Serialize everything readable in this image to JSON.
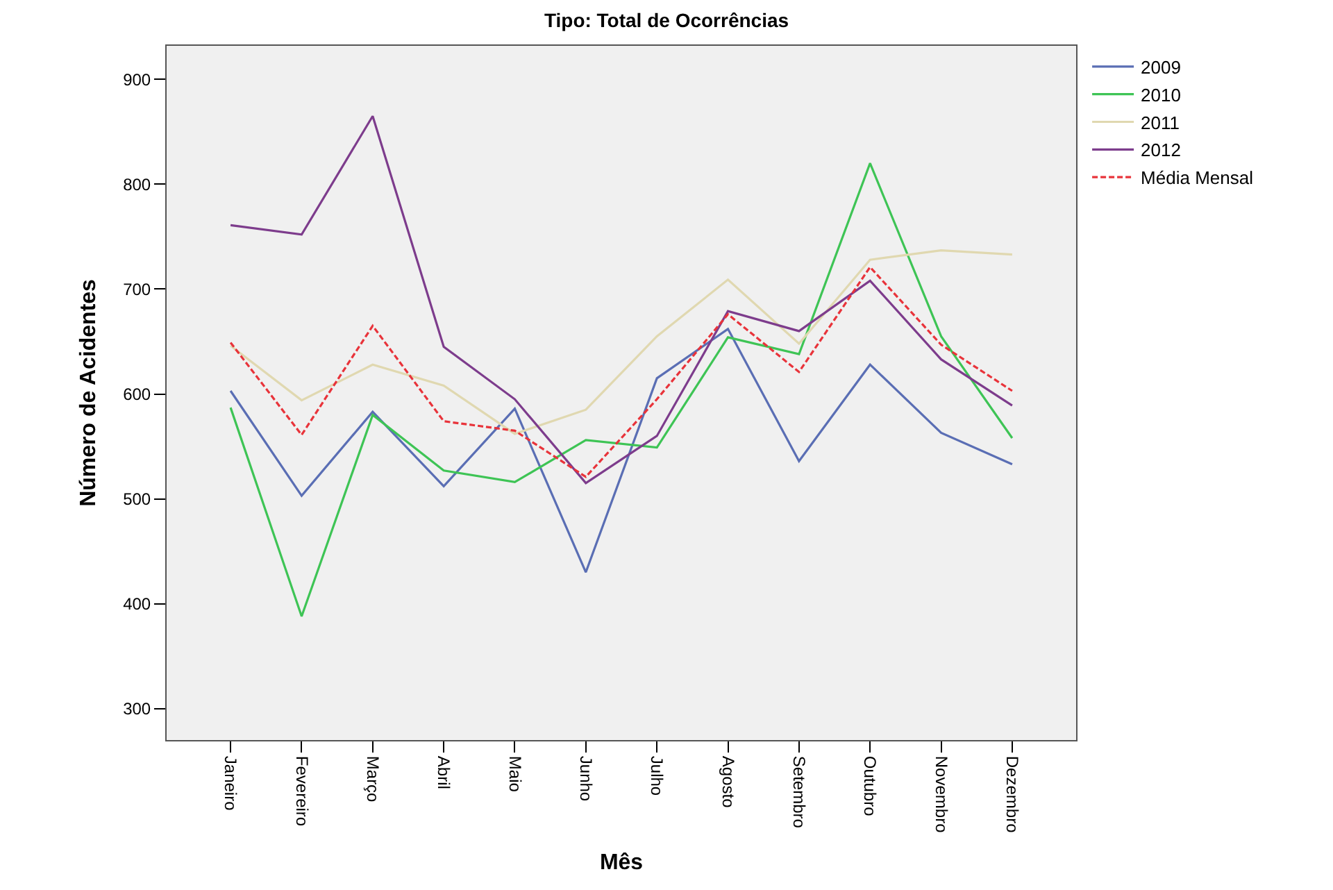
{
  "chart_data": {
    "type": "line",
    "title": "Tipo: Total de Ocorrências",
    "xlabel": "Mês",
    "ylabel": "Número de Acidentes",
    "categories": [
      "Janeiro",
      "Fevereiro",
      "Março",
      "Abril",
      "Maio",
      "Junho",
      "Julho",
      "Agosto",
      "Setembro",
      "Outubro",
      "Novembro",
      "Dezembro"
    ],
    "series": [
      {
        "name": "2009",
        "color": "#5a6eb4",
        "values": [
          603,
          503,
          583,
          512,
          586,
          430,
          615,
          662,
          536,
          628,
          563,
          533
        ]
      },
      {
        "name": "2010",
        "color": "#3ec455",
        "values": [
          587,
          388,
          580,
          527,
          516,
          556,
          549,
          654,
          638,
          820,
          655,
          558
        ]
      },
      {
        "name": "2011",
        "color": "#e0d8b0",
        "values": [
          646,
          594,
          628,
          608,
          562,
          585,
          655,
          709,
          648,
          728,
          737,
          733
        ]
      },
      {
        "name": "2012",
        "color": "#7d3c8c",
        "values": [
          761,
          752,
          865,
          645,
          595,
          515,
          560,
          679,
          660,
          708,
          633,
          589
        ]
      },
      {
        "name": "Média Mensal",
        "color": "#e8333a",
        "line_style": "dashed",
        "values": [
          649,
          561,
          665,
          574,
          565,
          521,
          595,
          676,
          621,
          721,
          647,
          603
        ]
      }
    ],
    "ylim": [
      270,
      932
    ],
    "yticks": [
      300,
      400,
      500,
      600,
      700,
      800,
      900
    ],
    "grid": false,
    "legend": "top right",
    "marker": "none",
    "line_style": "solid"
  }
}
